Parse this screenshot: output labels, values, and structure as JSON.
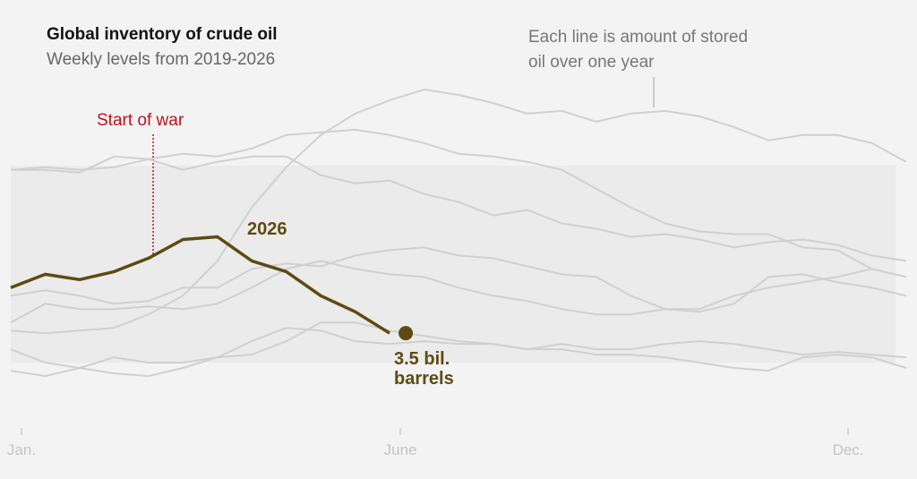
{
  "chart_data": {
    "type": "line",
    "title": "Global inventory of crude oil",
    "subtitle": "Weekly levels from 2019-2026",
    "annotations": [
      {
        "text": "Start of war"
      },
      {
        "text": "Each line is amount of stored oil over one year"
      }
    ],
    "categories": [
      "Jan.",
      null,
      null,
      null,
      null,
      null,
      null,
      null,
      null,
      null,
      null,
      "June",
      null,
      null,
      null,
      null,
      null,
      null,
      null,
      null,
      null,
      null,
      null,
      null,
      "Dec.",
      null,
      null
    ],
    "series": [
      {
        "color": "#d0d0d0",
        "values": [
          3.51,
          3.5,
          3.51,
          3.52,
          3.57,
          3.64,
          3.77,
          3.97,
          4.12,
          4.24,
          4.32,
          4.37,
          4.41,
          4.39,
          4.36,
          4.32,
          4.33,
          4.29,
          4.32,
          4.33,
          4.31,
          4.27,
          4.22,
          4.24,
          4.24,
          4.21,
          4.14
        ]
      },
      {
        "color": "#d0d0d0",
        "values": [
          4.11,
          4.12,
          4.11,
          4.12,
          4.15,
          4.11,
          4.14,
          4.16,
          4.16,
          4.09,
          4.06,
          4.07,
          4.02,
          3.99,
          3.94,
          3.96,
          3.91,
          3.89,
          3.86,
          3.87,
          3.85,
          3.82,
          3.84,
          3.85,
          3.83,
          3.79,
          3.77
        ]
      },
      {
        "color": "#d0d0d0",
        "values": [
          4.11,
          4.11,
          4.1,
          4.16,
          4.15,
          4.17,
          4.16,
          4.19,
          4.24,
          4.25,
          4.26,
          4.24,
          4.21,
          4.17,
          4.16,
          4.14,
          4.11,
          4.04,
          3.97,
          3.91,
          3.88,
          3.87,
          3.87,
          3.82,
          3.81,
          3.74,
          3.71
        ]
      },
      {
        "color": "#d0d0d0",
        "values": [
          3.64,
          3.66,
          3.64,
          3.61,
          3.62,
          3.67,
          3.67,
          3.74,
          3.76,
          3.75,
          3.79,
          3.81,
          3.82,
          3.79,
          3.78,
          3.75,
          3.72,
          3.71,
          3.64,
          3.59,
          3.58,
          3.61,
          3.71,
          3.72,
          3.69,
          3.67,
          3.64
        ]
      },
      {
        "color": "#d0d0d0",
        "values": [
          3.54,
          3.61,
          3.59,
          3.59,
          3.6,
          3.59,
          3.61,
          3.67,
          3.74,
          3.77,
          3.74,
          3.72,
          3.71,
          3.67,
          3.64,
          3.62,
          3.59,
          3.57,
          3.57,
          3.59,
          3.59,
          3.64,
          3.67,
          3.69,
          3.71,
          3.74,
          3.71
        ]
      },
      {
        "color": "#d0d0d0",
        "values": [
          3.44,
          3.39,
          3.37,
          3.41,
          3.39,
          3.39,
          3.41,
          3.42,
          3.47,
          3.54,
          3.54,
          3.51,
          3.49,
          3.47,
          3.46,
          3.44,
          3.44,
          3.42,
          3.42,
          3.41,
          3.39,
          3.37,
          3.36,
          3.41,
          3.42,
          3.41,
          3.37
        ]
      },
      {
        "color": "#d0d0d0",
        "values": [
          3.36,
          3.34,
          3.37,
          3.35,
          3.34,
          3.37,
          3.41,
          3.47,
          3.52,
          3.51,
          3.47,
          3.46,
          3.47,
          3.46,
          3.46,
          3.44,
          3.46,
          3.44,
          3.44,
          3.46,
          3.47,
          3.46,
          3.44,
          3.42,
          3.43,
          3.42,
          3.41
        ]
      },
      {
        "name": "2026",
        "color": "#5e4a12",
        "values": [
          3.67,
          3.72,
          3.7,
          3.73,
          3.78,
          3.85,
          3.86,
          3.77,
          3.73,
          3.64,
          3.58,
          3.5,
          null,
          null,
          null,
          null,
          null,
          null,
          null,
          null,
          null,
          null,
          null,
          null,
          null,
          null,
          null
        ],
        "value_labels": [
          null,
          null,
          null,
          null,
          null,
          null,
          null,
          null,
          null,
          null,
          null,
          "3.5 bil. barrels",
          null,
          null,
          null,
          null,
          null,
          null,
          null,
          null,
          null,
          null,
          null,
          null,
          null,
          null,
          null
        ]
      }
    ]
  }
}
